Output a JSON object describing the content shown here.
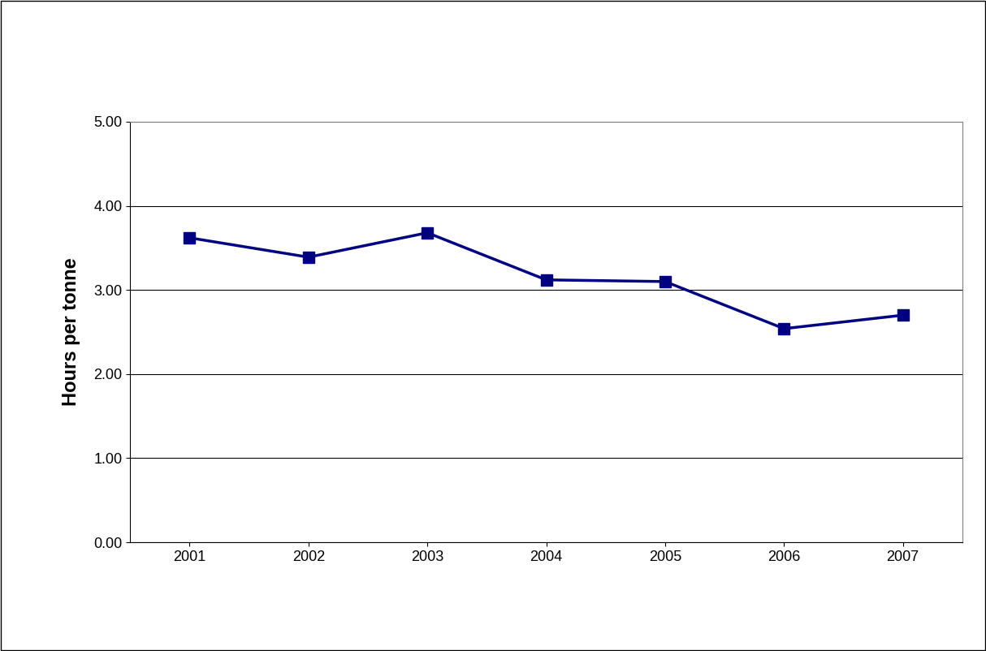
{
  "chart_data": {
    "type": "line",
    "y_label": "Hours per tonne",
    "categories": [
      "2001",
      "2002",
      "2003",
      "2004",
      "2005",
      "2006",
      "2007"
    ],
    "values": [
      3.62,
      3.39,
      3.68,
      3.12,
      3.1,
      2.54,
      2.7
    ],
    "color": "#000080",
    "marker": "square",
    "line_style": "solid",
    "ylim": [
      0,
      5
    ],
    "yticks": [
      {
        "value": 0,
        "label": "0.00"
      },
      {
        "value": 1,
        "label": "1.00"
      },
      {
        "value": 2,
        "label": "2.00"
      },
      {
        "value": 3,
        "label": "3.00"
      },
      {
        "value": 4,
        "label": "4.00"
      },
      {
        "value": 5,
        "label": "5.00"
      }
    ],
    "grid": true
  }
}
